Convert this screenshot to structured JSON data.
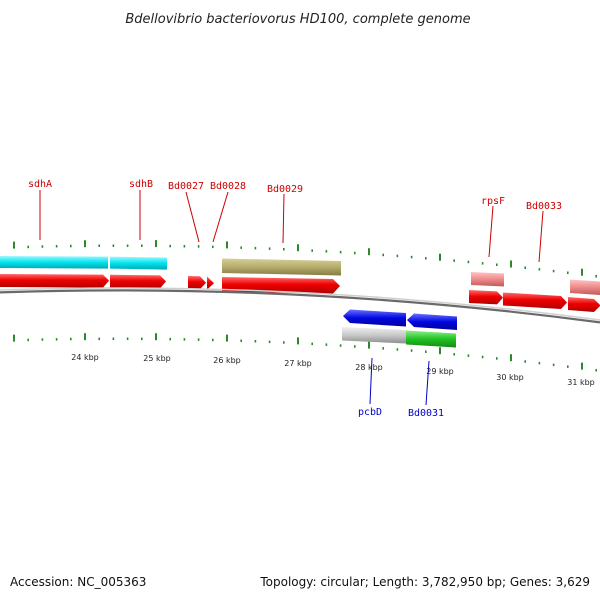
{
  "title": "Bdellovibrio bacteriovorus HD100, complete genome",
  "footer": {
    "accession": "Accession: NC_005363",
    "summary": "Topology: circular; Length: 3,782,950 bp; Genes: 3,629"
  },
  "colors": {
    "cds": "#e60000",
    "cyan": "#00e5f0",
    "khaki": "#b2a86a",
    "pink": "#ee8888",
    "blue": "#0008e0",
    "green": "#1fc01f",
    "gray": "#c2c2c2",
    "tick": "#2a8a2a",
    "label_red": "#cc0000",
    "label_blue": "#0000cc"
  },
  "kbp_labels": [
    "24 kbp",
    "25 kbp",
    "26 kbp",
    "27 kbp",
    "28 kbp",
    "29 kbp",
    "30 kbp",
    "31 kbp"
  ],
  "gene_labels": [
    {
      "id": "sdhA",
      "text": "sdhA",
      "color": "red"
    },
    {
      "id": "sdhB",
      "text": "sdhB",
      "color": "red"
    },
    {
      "id": "bd0027",
      "text": "Bd0027",
      "color": "red"
    },
    {
      "id": "bd0028",
      "text": "Bd0028",
      "color": "red"
    },
    {
      "id": "bd0029",
      "text": "Bd0029",
      "color": "red"
    },
    {
      "id": "rpsf",
      "text": "rpsF",
      "color": "red"
    },
    {
      "id": "bd0033",
      "text": "Bd0033",
      "color": "red"
    },
    {
      "id": "pcbd",
      "text": "pcbD",
      "color": "blue"
    },
    {
      "id": "bd0031",
      "text": "Bd0031",
      "color": "blue"
    }
  ],
  "features": [
    {
      "id": "sdhA",
      "track": "cyan"
    },
    {
      "id": "sdhB",
      "track": "cyan"
    },
    {
      "id": "bd0029",
      "track": "khaki"
    },
    {
      "id": "rpsf",
      "track": "pink"
    },
    {
      "id": "bd0033",
      "track": "pink"
    },
    {
      "id": "pcbd",
      "track": "blue"
    },
    {
      "id": "bd0031",
      "track": "blue"
    },
    {
      "id": "pcbd-bottom",
      "track": "gray"
    },
    {
      "id": "bd0031-bottom",
      "track": "green"
    }
  ]
}
